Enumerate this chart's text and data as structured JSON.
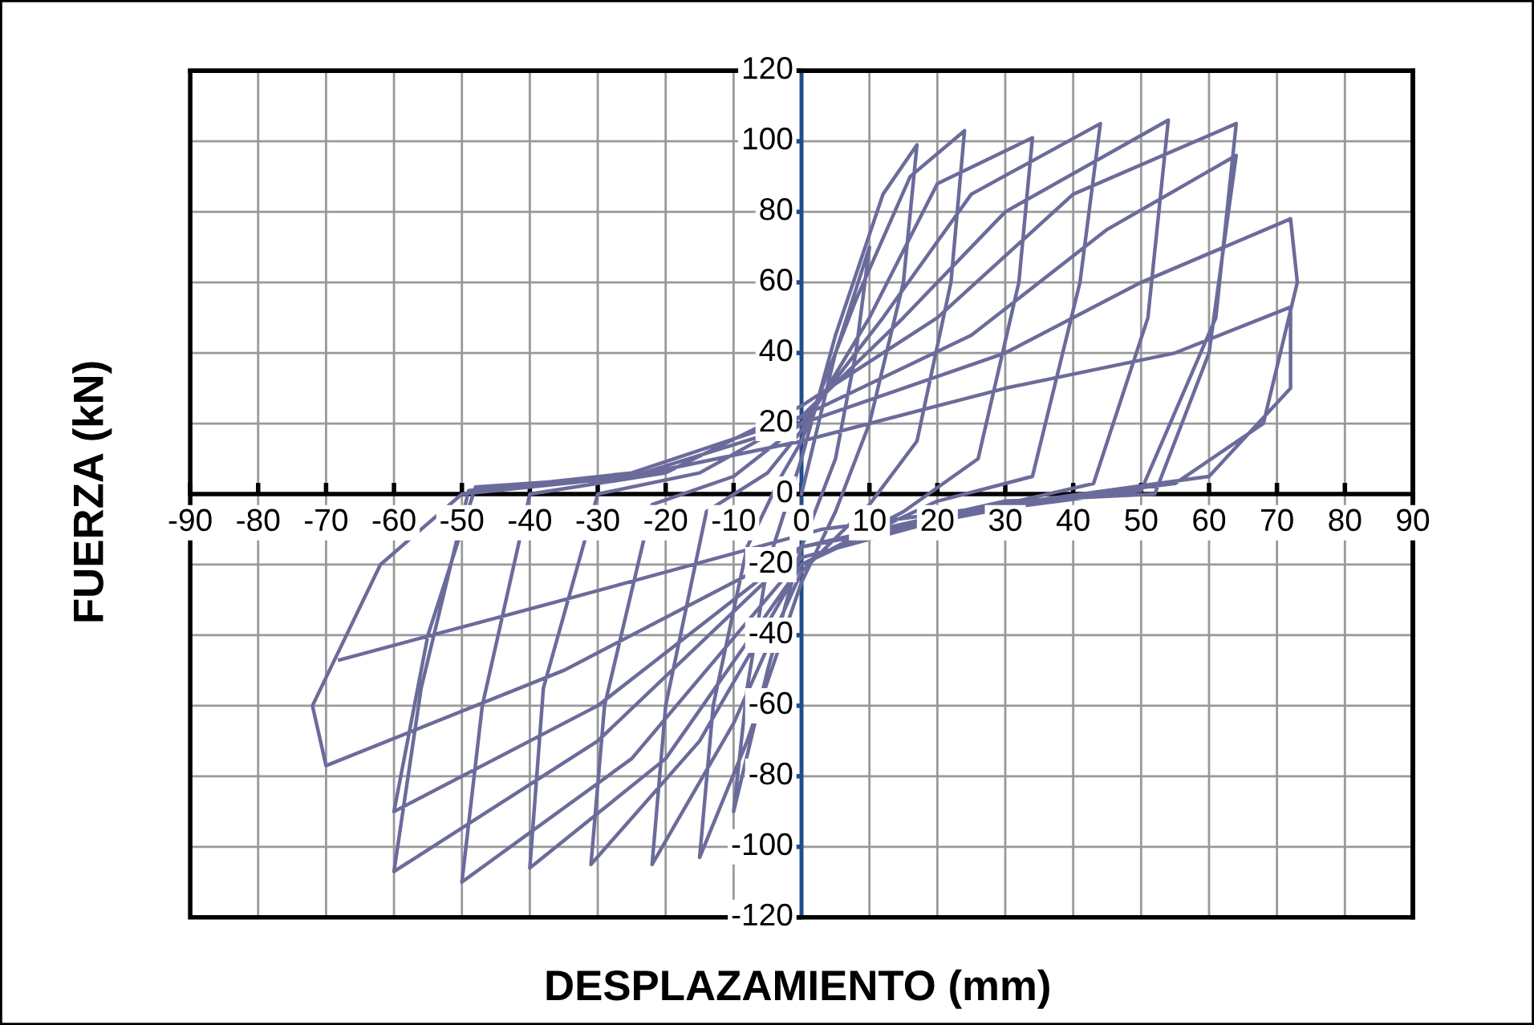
{
  "chart_data": {
    "type": "line",
    "xlabel": "DESPLAZAMIENTO (mm)",
    "ylabel": "FUERZA (kN)",
    "xlim": [
      -90,
      90
    ],
    "ylim": [
      -120,
      120
    ],
    "xticks": [
      -90,
      -80,
      -70,
      -60,
      -50,
      -40,
      -30,
      -20,
      -10,
      0,
      10,
      20,
      30,
      40,
      50,
      60,
      70,
      80,
      90
    ],
    "yticks": [
      -120,
      -100,
      -80,
      -60,
      -40,
      -20,
      0,
      20,
      40,
      60,
      80,
      100,
      120
    ],
    "grid": true,
    "marker": "none",
    "line_style": "solid",
    "series": [
      {
        "color": "#6b6b9b",
        "x": [
          0,
          5,
          10,
          8,
          5,
          0,
          -5,
          -10,
          -8,
          -5,
          0,
          5,
          12,
          17,
          15,
          10,
          5,
          0,
          -8,
          -15,
          -13,
          -8,
          -3,
          0,
          8,
          16,
          24,
          22,
          17,
          10,
          0,
          -10,
          -22,
          -20,
          -14,
          -5,
          0,
          10,
          20,
          34,
          32,
          26,
          15,
          0,
          -15,
          -31,
          -29,
          -22,
          -10,
          0,
          12,
          25,
          44,
          41,
          34,
          20,
          0,
          -20,
          -40,
          -38,
          -30,
          -15,
          0,
          15,
          30,
          54,
          51,
          43,
          25,
          0,
          -25,
          -50,
          -47,
          -40,
          -20,
          0,
          20,
          40,
          64,
          61,
          50,
          30,
          0,
          -30,
          -60,
          -56,
          -49,
          -25,
          0,
          25,
          45,
          64,
          60,
          52,
          30,
          0,
          -30,
          -60,
          -55,
          -48,
          -25,
          0,
          30,
          50,
          72,
          73,
          68,
          55,
          30,
          0,
          -35,
          -70,
          -72,
          -62,
          -50,
          -25,
          0,
          30,
          55,
          72,
          72,
          60,
          30,
          3,
          -35,
          -68
        ],
        "values": [
          0,
          40,
          70,
          40,
          10,
          -15,
          -50,
          -90,
          -55,
          -20,
          10,
          45,
          85,
          99,
          60,
          20,
          -5,
          -25,
          -70,
          -103,
          -60,
          -15,
          5,
          15,
          55,
          90,
          103,
          60,
          15,
          -3,
          -22,
          -65,
          -105,
          -60,
          -5,
          6,
          18,
          50,
          88,
          101,
          60,
          10,
          -5,
          -20,
          -70,
          -105,
          -60,
          -3,
          5,
          20,
          50,
          85,
          105,
          60,
          5,
          -2,
          -20,
          -75,
          -106,
          -55,
          0,
          6,
          22,
          50,
          80,
          106,
          50,
          3,
          -5,
          -18,
          -75,
          -110,
          -60,
          0,
          6,
          25,
          50,
          85,
          105,
          50,
          1,
          -4,
          -15,
          -70,
          -107,
          -55,
          1,
          6,
          22,
          45,
          75,
          96,
          40,
          0,
          -2,
          -15,
          -60,
          -90,
          -40,
          2,
          5,
          20,
          40,
          60,
          78,
          60,
          20,
          3,
          -3,
          -15,
          -50,
          -77,
          -60,
          -20,
          0,
          5,
          15,
          30,
          40,
          53,
          30,
          5,
          -3,
          -10,
          -30,
          -47
        ]
      }
    ]
  }
}
